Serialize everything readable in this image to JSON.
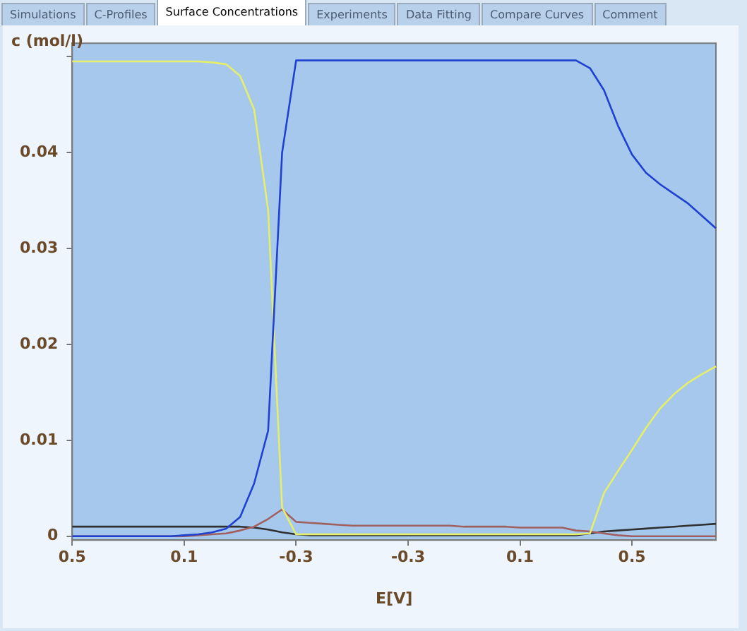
{
  "chart_data": {
    "type": "line",
    "xlabel": "E[V]",
    "ylabel": "c (mol/l)",
    "annotations": [
      "Simulations",
      "C-Profiles",
      "Surface Concentrations",
      "Experiments",
      "Data Fitting",
      "Compare Curves",
      "Comment"
    ],
    "categories": [
      "0.5",
      null,
      null,
      null,
      null,
      null,
      null,
      null,
      "0.1",
      null,
      null,
      null,
      null,
      null,
      null,
      null,
      "-0.3",
      null,
      null,
      null,
      null,
      null,
      null,
      null,
      "-0.3",
      null,
      null,
      null,
      null,
      null,
      null,
      null,
      "0.1",
      null,
      null,
      null,
      null,
      null,
      null,
      null,
      "0.5",
      null,
      null,
      null,
      null,
      null,
      null
    ],
    "series": [
      {
        "color": "#2040d0",
        "values": [
          0,
          0,
          0,
          0,
          0,
          0,
          0,
          0,
          0.0001,
          0.0002,
          0.0004,
          0.0008,
          0.002,
          0.0055,
          0.011,
          0.04,
          0.0496,
          0.0496,
          0.0496,
          0.0496,
          0.0496,
          0.0496,
          0.0496,
          0.0496,
          0.0496,
          0.0496,
          0.0496,
          0.0496,
          0.0496,
          0.0496,
          0.0496,
          0.0496,
          0.0496,
          0.0496,
          0.0496,
          0.0496,
          0.0496,
          0.0488,
          0.0465,
          0.0428,
          0.0398,
          0.0379,
          0.0367,
          0.0357,
          0.0347,
          0.0334,
          0.0321
        ]
      },
      {
        "color": "#e6ee6a",
        "values": [
          0.0495,
          0.0495,
          0.0495,
          0.0495,
          0.0495,
          0.0495,
          0.0495,
          0.0495,
          0.0495,
          0.0495,
          0.0494,
          0.0492,
          0.048,
          0.0445,
          0.034,
          0.003,
          0.0002,
          0.0002,
          0.0002,
          0.0002,
          0.0002,
          0.0002,
          0.0002,
          0.0002,
          0.0002,
          0.0002,
          0.0002,
          0.0002,
          0.0002,
          0.0002,
          0.0002,
          0.0002,
          0.0002,
          0.0002,
          0.0002,
          0.0002,
          0.0002,
          0.0003,
          0.0045,
          0.0068,
          0.009,
          0.0113,
          0.0133,
          0.0148,
          0.016,
          0.0169,
          0.0177
        ]
      },
      {
        "color": "#a06060",
        "values": [
          0,
          0,
          0,
          0,
          0,
          0,
          0,
          0,
          0,
          0.0001,
          0.0002,
          0.0003,
          0.0006,
          0.001,
          0.0018,
          0.0028,
          0.0015,
          0.0014,
          0.0013,
          0.0012,
          0.0011,
          0.0011,
          0.0011,
          0.0011,
          0.0011,
          0.0011,
          0.0011,
          0.0011,
          0.001,
          0.001,
          0.001,
          0.001,
          0.0009,
          0.0009,
          0.0009,
          0.0009,
          0.0006,
          0.0005,
          0.0003,
          0.0001,
          0,
          0,
          0,
          0,
          0,
          0,
          0
        ]
      },
      {
        "color": "#303030",
        "values": [
          0.001,
          0.001,
          0.001,
          0.001,
          0.001,
          0.001,
          0.001,
          0.001,
          0.001,
          0.001,
          0.001,
          0.001,
          0.001,
          0.0009,
          0.0007,
          0.0004,
          0.0002,
          0.0001,
          0.0001,
          0.0001,
          0.0001,
          0.0001,
          0.0001,
          0.0001,
          0.0001,
          0.0001,
          0.0001,
          0.0001,
          0.0001,
          0.0001,
          0.0001,
          0.0001,
          0.0001,
          0.0001,
          0.0001,
          0.0001,
          0.0001,
          0.0003,
          0.0005,
          0.0006,
          0.0007,
          0.0008,
          0.0009,
          0.001,
          0.0011,
          0.0012,
          0.0013
        ]
      }
    ],
    "ylim": [
      -0.0004,
      0.0514
    ],
    "yticks": [
      0,
      0.01,
      0.02,
      0.03,
      0.04,
      {
        "value": 0.05,
        "label": null
      }
    ],
    "grid": false,
    "legend": false,
    "marker": "none",
    "line_style": "solid"
  }
}
